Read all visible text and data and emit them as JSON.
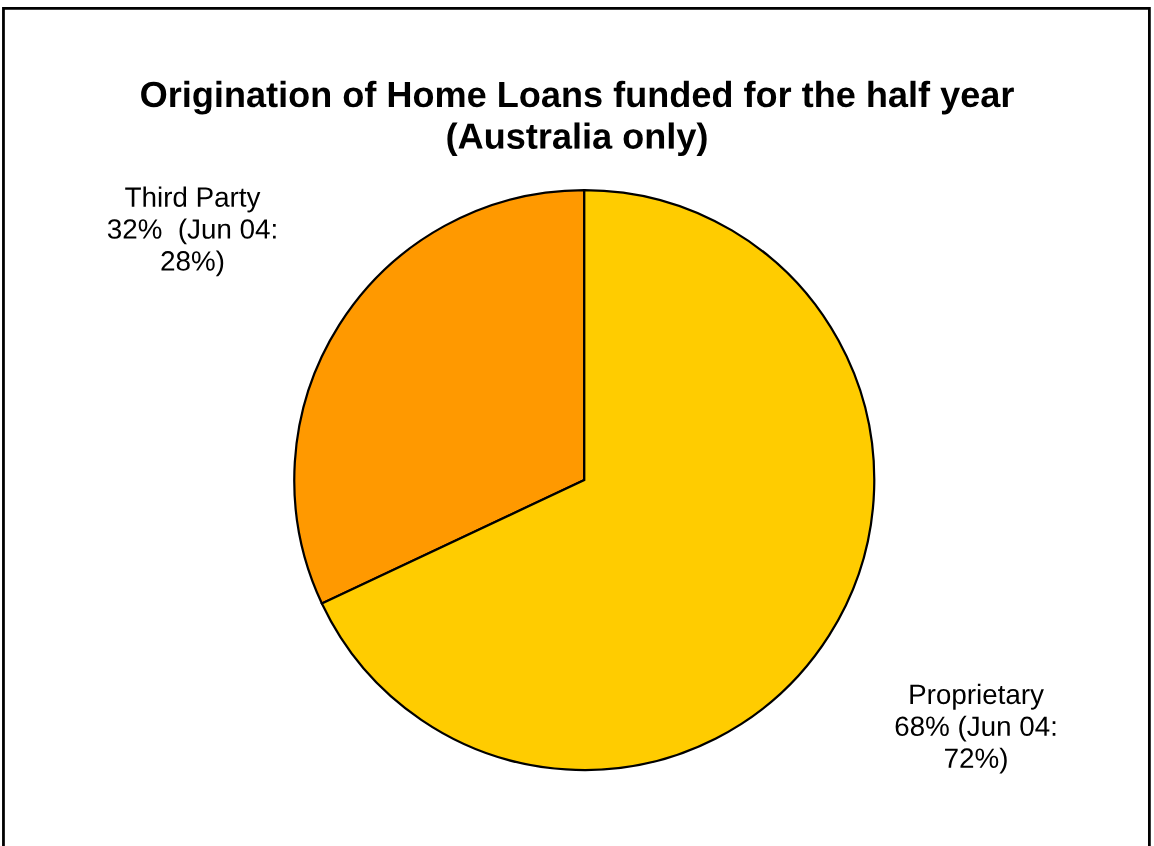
{
  "chart_data": {
    "type": "pie",
    "title": "Origination of Home Loans funded for the half year (Australia only)",
    "categories": [
      "Third Party",
      "Proprietary"
    ],
    "values": [
      32,
      68
    ],
    "colors": [
      "#ff9900",
      "#ffcc00"
    ],
    "value_labels": [
      "32%  (Jun 04:\n28%)",
      "68% (Jun 04:\n72%)"
    ]
  }
}
